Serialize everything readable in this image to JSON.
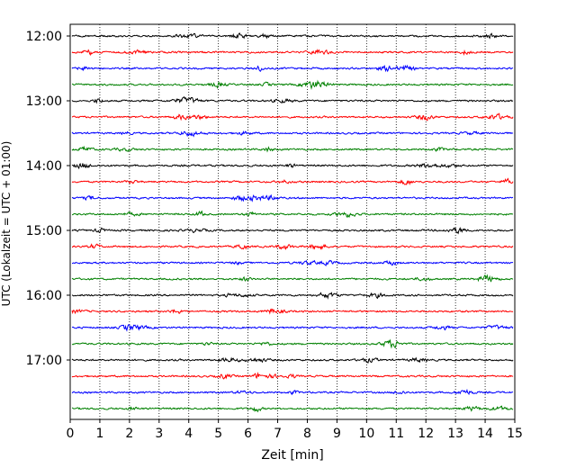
{
  "chart_data": {
    "type": "line",
    "subtype": "helicorder",
    "title": "",
    "xlabel": "Zeit  [min]",
    "ylabel": "UTC (Lokalzeit = UTC + 01:00)",
    "xlim": [
      0,
      15
    ],
    "x_ticks": [
      "0",
      "1",
      "2",
      "3",
      "4",
      "5",
      "6",
      "7",
      "8",
      "9",
      "10",
      "11",
      "12",
      "13",
      "14",
      "15"
    ],
    "y_tick_labels": [
      "12:00",
      "13:00",
      "14:00",
      "15:00",
      "16:00",
      "17:00"
    ],
    "grid": "vertical-dotted",
    "legend": "none",
    "trace_interval_minutes": 15,
    "trace_colors": [
      "#000000",
      "#ff0000",
      "#0000ff",
      "#008000"
    ],
    "traces": [
      {
        "start": "12:00",
        "color": "#000000"
      },
      {
        "start": "12:15",
        "color": "#ff0000"
      },
      {
        "start": "12:30",
        "color": "#0000ff"
      },
      {
        "start": "12:45",
        "color": "#008000"
      },
      {
        "start": "13:00",
        "color": "#000000"
      },
      {
        "start": "13:15",
        "color": "#ff0000"
      },
      {
        "start": "13:30",
        "color": "#0000ff"
      },
      {
        "start": "13:45",
        "color": "#008000"
      },
      {
        "start": "14:00",
        "color": "#000000"
      },
      {
        "start": "14:15",
        "color": "#ff0000"
      },
      {
        "start": "14:30",
        "color": "#0000ff"
      },
      {
        "start": "14:45",
        "color": "#008000"
      },
      {
        "start": "15:00",
        "color": "#000000"
      },
      {
        "start": "15:15",
        "color": "#ff0000"
      },
      {
        "start": "15:30",
        "color": "#0000ff"
      },
      {
        "start": "15:45",
        "color": "#008000"
      },
      {
        "start": "16:00",
        "color": "#000000"
      },
      {
        "start": "16:15",
        "color": "#ff0000"
      },
      {
        "start": "16:30",
        "color": "#0000ff"
      },
      {
        "start": "16:45",
        "color": "#008000"
      },
      {
        "start": "17:00",
        "color": "#000000"
      },
      {
        "start": "17:15",
        "color": "#ff0000"
      },
      {
        "start": "17:30",
        "color": "#0000ff"
      },
      {
        "start": "17:45",
        "color": "#008000"
      }
    ]
  }
}
